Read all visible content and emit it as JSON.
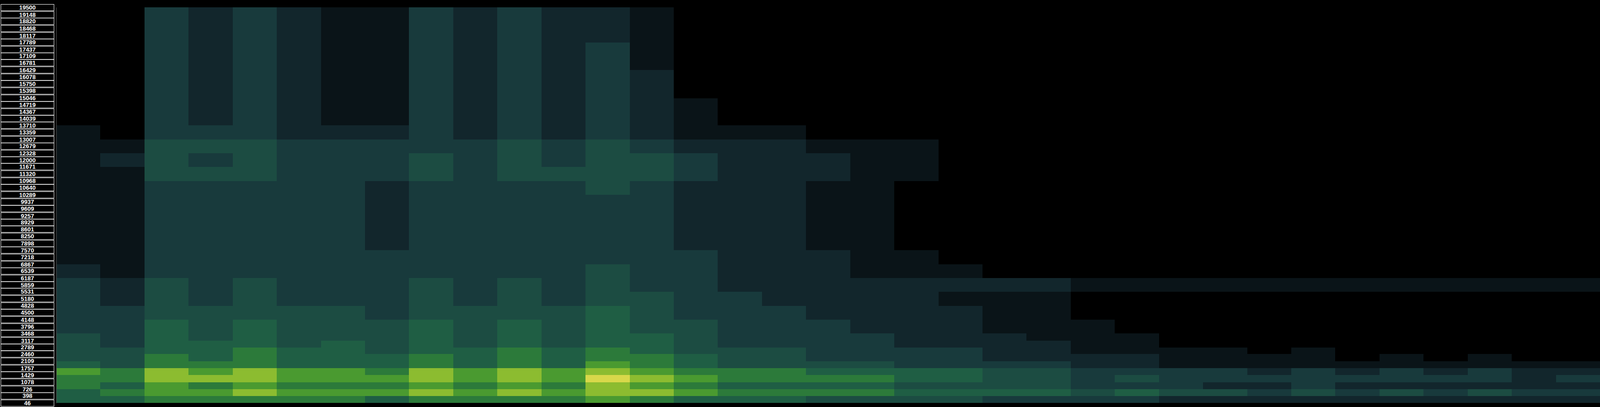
{
  "chart_data": {
    "type": "heatmap",
    "tick_labels": "y",
    "xlim": [
      0,
      35
    ],
    "ylim": [
      46,
      19500
    ],
    "yticks": [
      19500,
      19148,
      18820,
      18468,
      18117,
      17789,
      17437,
      17109,
      16781,
      16429,
      16078,
      15750,
      15398,
      15046,
      14719,
      14367,
      14039,
      13710,
      13359,
      13007,
      12679,
      12328,
      12000,
      11671,
      11320,
      10968,
      10640,
      10289,
      9937,
      9609,
      9257,
      8929,
      8601,
      8250,
      7898,
      7570,
      7218,
      6867,
      6539,
      6187,
      5859,
      5531,
      5180,
      4828,
      4500,
      4148,
      3796,
      3468,
      3117,
      2789,
      2460,
      2109,
      1757,
      1429,
      1078,
      726,
      398,
      46
    ],
    "y_edges": [
      46,
      398,
      726,
      1078,
      1429,
      1757,
      2109,
      2460,
      2789,
      3117,
      3468,
      4148,
      4828,
      5531,
      6187,
      6867,
      7570,
      8250,
      8929,
      9609,
      10289,
      10968,
      11671,
      12328,
      13007,
      13710,
      15046,
      16429,
      17789,
      19500
    ],
    "zlim": [
      0,
      9
    ],
    "cells": [
      [
        5,
        5,
        6,
        6,
        7,
        5,
        4,
        4,
        4,
        4,
        3,
        3,
        3,
        3,
        2,
        1,
        1,
        1,
        1,
        1,
        1,
        1,
        1,
        1,
        1,
        0,
        0,
        0,
        0
      ],
      [
        5,
        6,
        5,
        6,
        6,
        4,
        4,
        4,
        3,
        3,
        3,
        3,
        2,
        2,
        1,
        1,
        1,
        1,
        1,
        1,
        1,
        1,
        2,
        1,
        0,
        0,
        0,
        0,
        0
      ],
      [
        6,
        7,
        7,
        8,
        8,
        6,
        6,
        5,
        5,
        5,
        5,
        4,
        4,
        4,
        3,
        3,
        3,
        3,
        3,
        3,
        3,
        4,
        4,
        4,
        3,
        3,
        3,
        3,
        3
      ],
      [
        6,
        7,
        6,
        8,
        7,
        6,
        5,
        5,
        5,
        4,
        4,
        4,
        3,
        3,
        3,
        3,
        3,
        3,
        3,
        3,
        3,
        4,
        3,
        4,
        3,
        2,
        2,
        2,
        2
      ],
      [
        6,
        8,
        7,
        8,
        8,
        6,
        6,
        6,
        5,
        5,
        5,
        4,
        4,
        4,
        3,
        3,
        3,
        3,
        3,
        3,
        3,
        4,
        4,
        4,
        3,
        3,
        3,
        3,
        3
      ],
      [
        6,
        7,
        6,
        7,
        7,
        5,
        5,
        5,
        4,
        4,
        4,
        4,
        3,
        3,
        3,
        3,
        3,
        3,
        3,
        3,
        3,
        3,
        3,
        3,
        2,
        2,
        2,
        2,
        2
      ],
      [
        6,
        7,
        6,
        7,
        7,
        5,
        5,
        5,
        5,
        4,
        4,
        4,
        3,
        3,
        3,
        3,
        3,
        3,
        3,
        3,
        3,
        3,
        3,
        3,
        2,
        1,
        1,
        1,
        1
      ],
      [
        5,
        7,
        6,
        7,
        6,
        5,
        5,
        4,
        4,
        4,
        4,
        3,
        3,
        3,
        3,
        3,
        2,
        2,
        2,
        2,
        2,
        3,
        3,
        3,
        2,
        1,
        1,
        1,
        1
      ],
      [
        6,
        8,
        7,
        8,
        8,
        6,
        6,
        5,
        5,
        5,
        5,
        4,
        4,
        4,
        3,
        3,
        3,
        3,
        3,
        3,
        3,
        4,
        4,
        3,
        3,
        3,
        3,
        3,
        3
      ],
      [
        6,
        7,
        6,
        7,
        7,
        5,
        5,
        5,
        4,
        4,
        4,
        4,
        3,
        3,
        3,
        3,
        3,
        3,
        3,
        3,
        3,
        3,
        3,
        3,
        2,
        2,
        2,
        2,
        2
      ],
      [
        6,
        8,
        7,
        8,
        8,
        6,
        6,
        6,
        5,
        5,
        5,
        4,
        4,
        4,
        3,
        3,
        3,
        3,
        3,
        3,
        3,
        4,
        4,
        4,
        3,
        3,
        3,
        3,
        3
      ],
      [
        6,
        7,
        6,
        7,
        7,
        5,
        5,
        5,
        4,
        4,
        4,
        4,
        3,
        3,
        3,
        3,
        3,
        3,
        3,
        3,
        3,
        4,
        3,
        3,
        2,
        2,
        2,
        2,
        2
      ],
      [
        7,
        8,
        8,
        9,
        8,
        7,
        6,
        6,
        5,
        5,
        5,
        5,
        4,
        4,
        4,
        3,
        3,
        3,
        3,
        3,
        4,
        4,
        4,
        4,
        3,
        3,
        3,
        3,
        2
      ],
      [
        6,
        8,
        7,
        8,
        7,
        6,
        6,
        5,
        5,
        5,
        4,
        4,
        4,
        3,
        3,
        3,
        3,
        3,
        3,
        3,
        3,
        4,
        4,
        3,
        2,
        2,
        2,
        1,
        1
      ],
      [
        5,
        7,
        6,
        7,
        6,
        5,
        5,
        4,
        4,
        4,
        4,
        3,
        3,
        3,
        3,
        3,
        2,
        2,
        2,
        2,
        2,
        3,
        3,
        2,
        1,
        1,
        0,
        0,
        0
      ],
      [
        5,
        6,
        5,
        6,
        6,
        4,
        4,
        4,
        3,
        3,
        3,
        3,
        3,
        2,
        2,
        2,
        2,
        2,
        2,
        2,
        2,
        2,
        2,
        2,
        1,
        0,
        0,
        0,
        0
      ],
      [
        5,
        6,
        5,
        6,
        6,
        4,
        4,
        4,
        3,
        3,
        3,
        3,
        2,
        2,
        2,
        2,
        2,
        2,
        2,
        2,
        2,
        2,
        2,
        2,
        1,
        0,
        0,
        0,
        0
      ],
      [
        4,
        6,
        5,
        6,
        5,
        4,
        3,
        3,
        3,
        3,
        3,
        2,
        2,
        2,
        2,
        2,
        1,
        1,
        1,
        1,
        1,
        2,
        2,
        1,
        0,
        0,
        0,
        0,
        0
      ],
      [
        4,
        6,
        5,
        6,
        5,
        4,
        3,
        3,
        3,
        3,
        2,
        2,
        2,
        2,
        1,
        1,
        1,
        1,
        1,
        1,
        1,
        1,
        1,
        1,
        0,
        0,
        0,
        0,
        0
      ],
      [
        4,
        5,
        4,
        5,
        5,
        3,
        3,
        3,
        2,
        2,
        2,
        2,
        2,
        2,
        1,
        1,
        0,
        0,
        0,
        0,
        0,
        1,
        1,
        1,
        0,
        0,
        0,
        0,
        0
      ],
      [
        4,
        5,
        4,
        5,
        5,
        3,
        3,
        3,
        2,
        2,
        2,
        2,
        1,
        2,
        1,
        0,
        0,
        0,
        0,
        0,
        0,
        0,
        0,
        0,
        0,
        0,
        0,
        0,
        0
      ],
      [
        3,
        5,
        4,
        4,
        4,
        3,
        2,
        2,
        2,
        2,
        1,
        1,
        1,
        2,
        0,
        0,
        0,
        0,
        0,
        0,
        0,
        0,
        0,
        0,
        0,
        0,
        0,
        0,
        0
      ],
      [
        3,
        5,
        4,
        4,
        4,
        3,
        2,
        2,
        2,
        1,
        1,
        1,
        1,
        2,
        0,
        0,
        0,
        0,
        0,
        0,
        0,
        0,
        0,
        0,
        0,
        0,
        0,
        0,
        0
      ],
      [
        3,
        4,
        3,
        3,
        3,
        2,
        2,
        1,
        1,
        1,
        1,
        0,
        0,
        1,
        0,
        0,
        0,
        0,
        0,
        0,
        0,
        0,
        0,
        0,
        0,
        0,
        0,
        0,
        0
      ],
      [
        3,
        5,
        3,
        4,
        3,
        2,
        2,
        1,
        1,
        1,
        0,
        0,
        0,
        1,
        0,
        0,
        0,
        0,
        0,
        0,
        0,
        0,
        0,
        0,
        0,
        0,
        0,
        0,
        0
      ],
      [
        2,
        4,
        3,
        3,
        3,
        1,
        1,
        1,
        0,
        0,
        0,
        0,
        0,
        1,
        0,
        0,
        0,
        0,
        0,
        0,
        0,
        0,
        0,
        0,
        0,
        0,
        0,
        0,
        0
      ],
      [
        2,
        4,
        2,
        3,
        3,
        1,
        1,
        1,
        0,
        0,
        0,
        0,
        0,
        1,
        0,
        0,
        0,
        0,
        0,
        0,
        0,
        0,
        0,
        0,
        0,
        0,
        0,
        0,
        0
      ],
      [
        2,
        3,
        2,
        3,
        2,
        1,
        1,
        0,
        0,
        0,
        0,
        0,
        0,
        1,
        0,
        0,
        0,
        0,
        0,
        0,
        0,
        0,
        0,
        0,
        0,
        0,
        0,
        0,
        0
      ],
      [
        2,
        4,
        3,
        3,
        3,
        1,
        1,
        1,
        0,
        0,
        0,
        0,
        0,
        1,
        0,
        0,
        0,
        0,
        0,
        0,
        0,
        0,
        0,
        0,
        0,
        0,
        0,
        0,
        0
      ],
      [
        2,
        3,
        2,
        3,
        2,
        1,
        0,
        0,
        0,
        0,
        0,
        0,
        0,
        1,
        0,
        0,
        0,
        0,
        0,
        0,
        0,
        0,
        0,
        0,
        0,
        0,
        0,
        0,
        0
      ],
      [
        2,
        4,
        2,
        3,
        3,
        1,
        1,
        0,
        0,
        0,
        0,
        0,
        0,
        1,
        0,
        0,
        0,
        0,
        0,
        0,
        0,
        0,
        0,
        0,
        0,
        0,
        0,
        0,
        0
      ],
      [
        2,
        3,
        2,
        3,
        2,
        1,
        0,
        0,
        0,
        0,
        0,
        0,
        0,
        1,
        0,
        0,
        0,
        0,
        0,
        0,
        0,
        0,
        0,
        0,
        0,
        0,
        0,
        0,
        0
      ],
      [
        2,
        4,
        2,
        3,
        3,
        1,
        1,
        0,
        0,
        0,
        0,
        0,
        0,
        1,
        0,
        0,
        0,
        0,
        0,
        0,
        0,
        0,
        0,
        0,
        0,
        0,
        0,
        0,
        0
      ],
      [
        2,
        3,
        2,
        2,
        2,
        1,
        0,
        0,
        0,
        0,
        0,
        0,
        0,
        1,
        0,
        0,
        0,
        0,
        0,
        0,
        0,
        0,
        0,
        0,
        0,
        0,
        0,
        0,
        0
      ],
      [
        2,
        3,
        2,
        3,
        2,
        1,
        0,
        0,
        0,
        0,
        0,
        0,
        0,
        1,
        0,
        0,
        0,
        0,
        0,
        0,
        0,
        0,
        0,
        0,
        0,
        0,
        0,
        0,
        0
      ]
    ]
  }
}
